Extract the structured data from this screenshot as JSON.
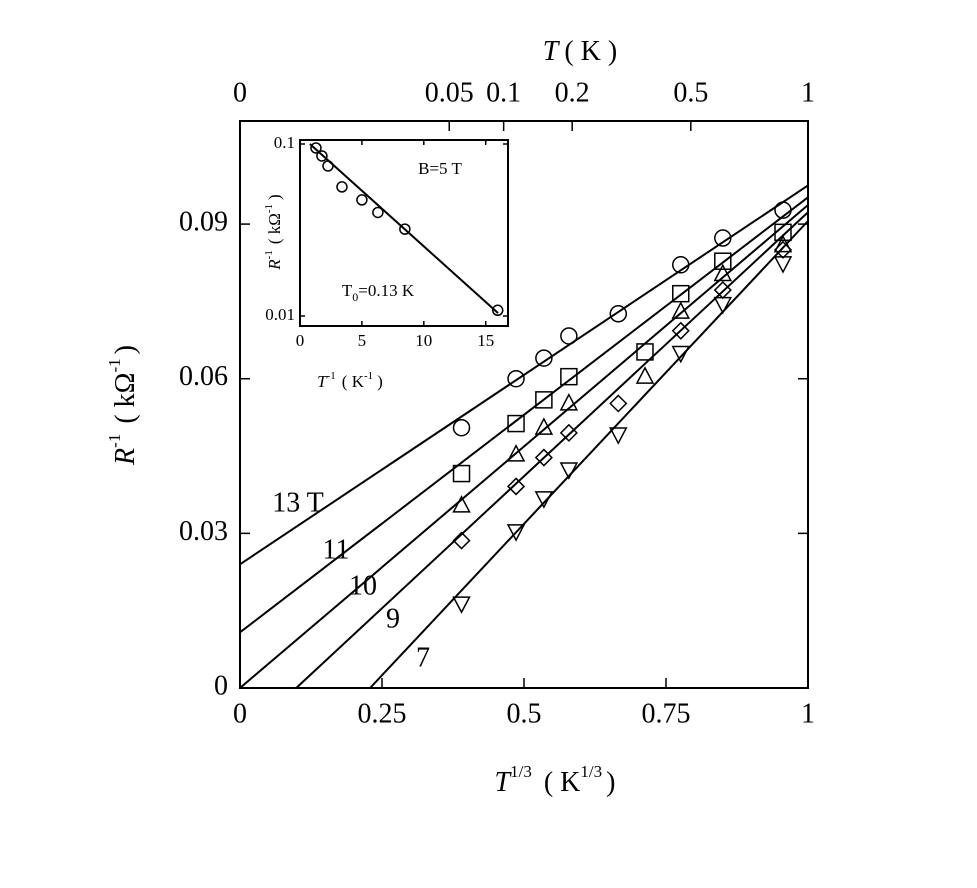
{
  "chart_data": [
    {
      "type": "scatter",
      "xlim": [
        0,
        1
      ],
      "ylim": [
        0,
        0.11
      ],
      "xticks": [
        0,
        0.25,
        0.5,
        0.75,
        1
      ],
      "yticks": [
        0,
        0.03,
        0.06,
        0.09
      ],
      "top_xticks": [
        0,
        0.05,
        0.1,
        0.2,
        0.5,
        1
      ],
      "top_xlabel": [
        "T",
        "( K )"
      ],
      "xlabel": [
        "T",
        "1/3",
        "( K",
        "1/3",
        ")"
      ],
      "ylabel": [
        "R",
        "-1",
        "( kΩ",
        "-1",
        ")"
      ],
      "series": [
        {
          "name": "13 T",
          "marker": "circle",
          "color": "#000000",
          "x": [
            0.39,
            0.486,
            0.535,
            0.579,
            0.666,
            0.776,
            0.85,
            0.956
          ],
          "values": [
            0.0505,
            0.06,
            0.064,
            0.0683,
            0.0726,
            0.0821,
            0.0873,
            0.0927
          ],
          "fit_x": [
            0,
            1
          ],
          "fit_y": [
            0.024,
            0.0975
          ]
        },
        {
          "name": "11",
          "marker": "square",
          "color": "#000000",
          "x": [
            0.39,
            0.486,
            0.535,
            0.579,
            0.713,
            0.776,
            0.85,
            0.956
          ],
          "values": [
            0.0416,
            0.0513,
            0.0559,
            0.0604,
            0.0652,
            0.0765,
            0.0828,
            0.0884
          ],
          "fit_x": [
            0,
            1
          ],
          "fit_y": [
            0.0108,
            0.0952
          ]
        },
        {
          "name": "10",
          "marker": "triangle-up",
          "color": "#000000",
          "x": [
            0.39,
            0.486,
            0.535,
            0.579,
            0.713,
            0.776,
            0.85,
            0.956
          ],
          "values": [
            0.0354,
            0.0453,
            0.0505,
            0.0552,
            0.0604,
            0.073,
            0.0803,
            0.0859
          ],
          "fit_x": [
            0,
            1
          ],
          "fit_y": [
            0,
            0.0937
          ]
        },
        {
          "name": "9",
          "marker": "diamond",
          "color": "#000000",
          "x": [
            0.39,
            0.486,
            0.535,
            0.579,
            0.666,
            0.776,
            0.85,
            0.956
          ],
          "values": [
            0.0286,
            0.0391,
            0.0447,
            0.0495,
            0.0552,
            0.0693,
            0.0772,
            0.085
          ],
          "fit_x": [
            0.099,
            1
          ],
          "fit_y": [
            0,
            0.0923
          ]
        },
        {
          "name": "7",
          "marker": "triangle-down",
          "color": "#000000",
          "x": [
            0.39,
            0.486,
            0.535,
            0.579,
            0.666,
            0.776,
            0.85,
            0.956
          ],
          "values": [
            0.0164,
            0.0304,
            0.0368,
            0.0424,
            0.0492,
            0.065,
            0.0745,
            0.0824
          ],
          "fit_x": [
            0.229,
            1
          ],
          "fit_y": [
            0,
            0.0906
          ]
        }
      ]
    },
    {
      "type": "scatter",
      "log_y": true,
      "xlim": [
        0,
        16.8
      ],
      "ylim": [
        0.00875,
        0.1055
      ],
      "xticks": [
        0,
        5,
        10,
        15
      ],
      "yticks": [
        0.1,
        0.01
      ],
      "xlabel": [
        "T",
        "-1",
        "( K",
        "-1",
        ")"
      ],
      "ylabel": [
        "R",
        "-1",
        "( kΩ",
        "-1",
        ")"
      ],
      "annotation": "B=5 T",
      "annotation2": [
        "T",
        "0",
        "=0.13 K"
      ],
      "series": [
        {
          "marker": "circle",
          "color": "#000000",
          "x": [
            1.29,
            1.77,
            2.26,
            3.39,
            5.0,
            6.29,
            8.47,
            15.97
          ],
          "values": [
            0.0948,
            0.0852,
            0.0745,
            0.0563,
            0.0473,
            0.04,
            0.032,
            0.0108
          ],
          "fit_x": [
            0.8,
            16
          ],
          "fit_y": [
            0.1,
            0.0104
          ]
        }
      ]
    }
  ]
}
